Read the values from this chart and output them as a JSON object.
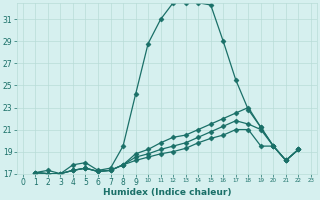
{
  "xlabel": "Humidex (Indice chaleur)",
  "background_color": "#d6f0ef",
  "grid_color": "#b8dcd8",
  "line_color": "#1a7068",
  "xlim": [
    -0.5,
    23.5
  ],
  "ylim": [
    17,
    32.5
  ],
  "yticks": [
    17,
    19,
    21,
    23,
    25,
    27,
    29,
    31
  ],
  "xticks": [
    0,
    1,
    2,
    3,
    4,
    5,
    6,
    7,
    8,
    9,
    10,
    11,
    12,
    13,
    14,
    15,
    16,
    17,
    18,
    19,
    20,
    21,
    22,
    23
  ],
  "x_start": 1,
  "series": [
    [
      17.1,
      17.3,
      17.0,
      17.8,
      18.0,
      17.3,
      17.5,
      19.5,
      24.2,
      28.8,
      31.0,
      32.5,
      32.5,
      32.5,
      32.3,
      29.0,
      25.5,
      22.8,
      21.2,
      19.5,
      18.2,
      19.2
    ],
    [
      17.1,
      17.0,
      17.0,
      17.3,
      17.5,
      17.2,
      17.3,
      17.8,
      18.8,
      19.2,
      19.8,
      20.3,
      20.5,
      21.0,
      21.5,
      22.0,
      22.5,
      23.0,
      21.2,
      19.5,
      18.2,
      19.2
    ],
    [
      17.1,
      17.0,
      17.0,
      17.3,
      17.5,
      17.2,
      17.3,
      17.8,
      18.5,
      18.8,
      19.2,
      19.5,
      19.8,
      20.3,
      20.8,
      21.3,
      21.8,
      21.5,
      21.0,
      19.5,
      18.2,
      19.2
    ],
    [
      17.1,
      17.0,
      17.0,
      17.3,
      17.5,
      17.2,
      17.3,
      17.8,
      18.2,
      18.5,
      18.8,
      19.0,
      19.3,
      19.8,
      20.2,
      20.5,
      21.0,
      21.0,
      19.5,
      19.5,
      18.2,
      19.2
    ]
  ],
  "marker": "D",
  "markersize": 2.5,
  "linewidth": 0.9,
  "tick_fontsize": 5.5,
  "xlabel_fontsize": 6.5
}
